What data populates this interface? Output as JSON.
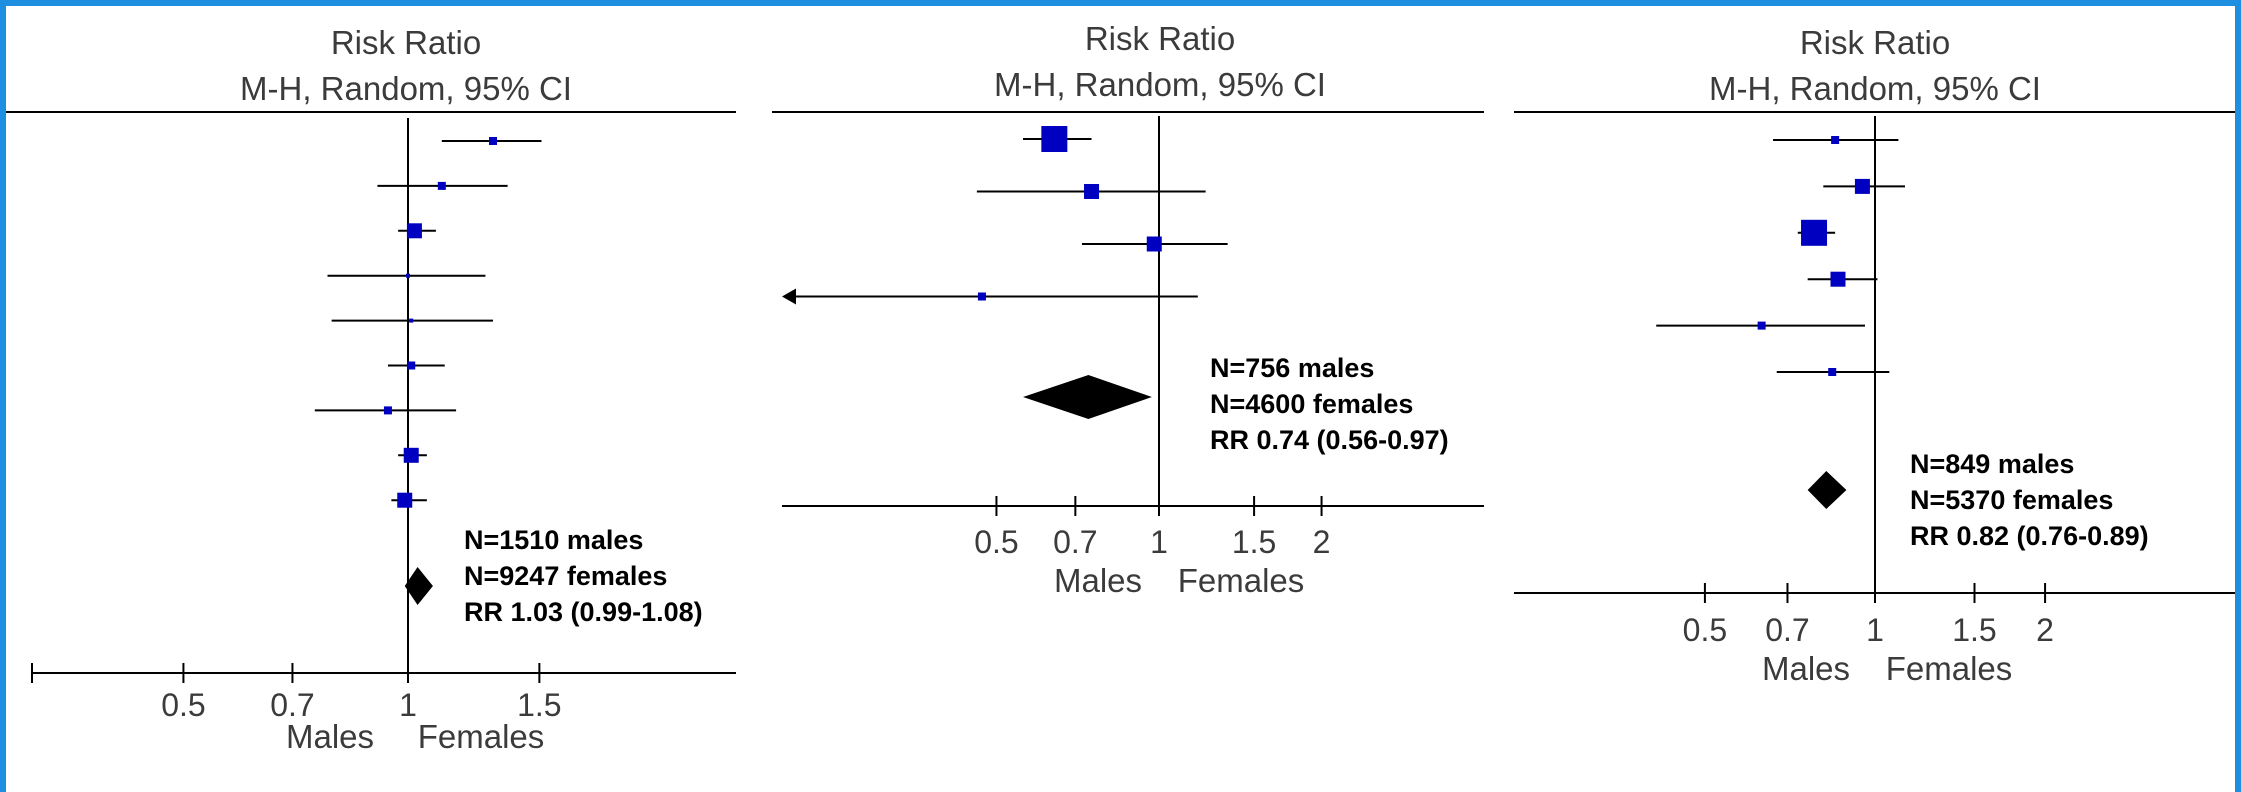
{
  "chart_data": [
    {
      "type": "forest",
      "title": "Risk Ratio",
      "subtitle": "M-H, Random, 95% CI",
      "xscale": "log",
      "xlim": [
        0.5,
        1.8
      ],
      "ticks": [
        "0.5",
        "0.7",
        "1",
        "1.5"
      ],
      "xlabel_left": "Males",
      "xlabel_right": "Females",
      "studies": [
        {
          "rr": 1.3,
          "lo": 1.11,
          "hi": 1.51,
          "weight": "small"
        },
        {
          "rr": 1.11,
          "lo": 0.91,
          "hi": 1.36,
          "weight": "small"
        },
        {
          "rr": 1.02,
          "lo": 0.97,
          "hi": 1.09,
          "weight": "medium"
        },
        {
          "rr": 1.0,
          "lo": 0.78,
          "hi": 1.27,
          "weight": "tiny"
        },
        {
          "rr": 1.01,
          "lo": 0.79,
          "hi": 1.3,
          "weight": "tiny"
        },
        {
          "rr": 1.01,
          "lo": 0.94,
          "hi": 1.12,
          "weight": "small"
        },
        {
          "rr": 0.94,
          "lo": 0.75,
          "hi": 1.16,
          "weight": "small"
        },
        {
          "rr": 1.01,
          "lo": 0.97,
          "hi": 1.06,
          "weight": "medium"
        },
        {
          "rr": 0.99,
          "lo": 0.95,
          "hi": 1.06,
          "weight": "medium"
        }
      ],
      "pooled": {
        "rr": 1.03,
        "lo": 0.99,
        "hi": 1.08
      },
      "annotation": [
        "N=1510 males",
        "N=9247 females",
        "RR 1.03 (0.99-1.08)"
      ]
    },
    {
      "type": "forest",
      "title": "Risk Ratio",
      "subtitle": "M-H, Random, 95% CI",
      "xscale": "log",
      "xlim": [
        0.5,
        2
      ],
      "ticks": [
        "0.5",
        "0.7",
        "1",
        "1.5",
        "2"
      ],
      "xlabel_left": "Males",
      "xlabel_right": "Females",
      "studies": [
        {
          "rr": 0.64,
          "lo": 0.56,
          "hi": 0.75,
          "weight": "large"
        },
        {
          "rr": 0.75,
          "lo": 0.46,
          "hi": 1.22,
          "weight": "medium"
        },
        {
          "rr": 0.98,
          "lo": 0.72,
          "hi": 1.34,
          "weight": "medium"
        },
        {
          "rr": 0.47,
          "lo": null,
          "hi": 1.18,
          "weight": "small",
          "arrow_left": true
        }
      ],
      "pooled": {
        "rr": 0.74,
        "lo": 0.56,
        "hi": 0.97
      },
      "annotation": [
        "N=756 males",
        "N=4600 females",
        "RR 0.74 (0.56-0.97)"
      ]
    },
    {
      "type": "forest",
      "title": "Risk Ratio",
      "subtitle": "M-H, Random, 95% CI",
      "xscale": "log",
      "xlim": [
        0.5,
        2
      ],
      "ticks": [
        "0.5",
        "0.7",
        "1",
        "1.5",
        "2"
      ],
      "xlabel_left": "Males",
      "xlabel_right": "Females",
      "studies": [
        {
          "rr": 0.85,
          "lo": 0.66,
          "hi": 1.1,
          "weight": "small"
        },
        {
          "rr": 0.95,
          "lo": 0.81,
          "hi": 1.13,
          "weight": "medium"
        },
        {
          "rr": 0.78,
          "lo": 0.73,
          "hi": 0.85,
          "weight": "large"
        },
        {
          "rr": 0.86,
          "lo": 0.76,
          "hi": 1.01,
          "weight": "medium"
        },
        {
          "rr": 0.63,
          "lo": 0.41,
          "hi": 0.96,
          "weight": "small"
        },
        {
          "rr": 0.84,
          "lo": 0.67,
          "hi": 1.06,
          "weight": "small"
        }
      ],
      "pooled": {
        "rr": 0.82,
        "lo": 0.76,
        "hi": 0.89
      },
      "annotation": [
        "N=849 males",
        "N=5370 females",
        "RR 0.82 (0.76-0.89)"
      ]
    }
  ]
}
